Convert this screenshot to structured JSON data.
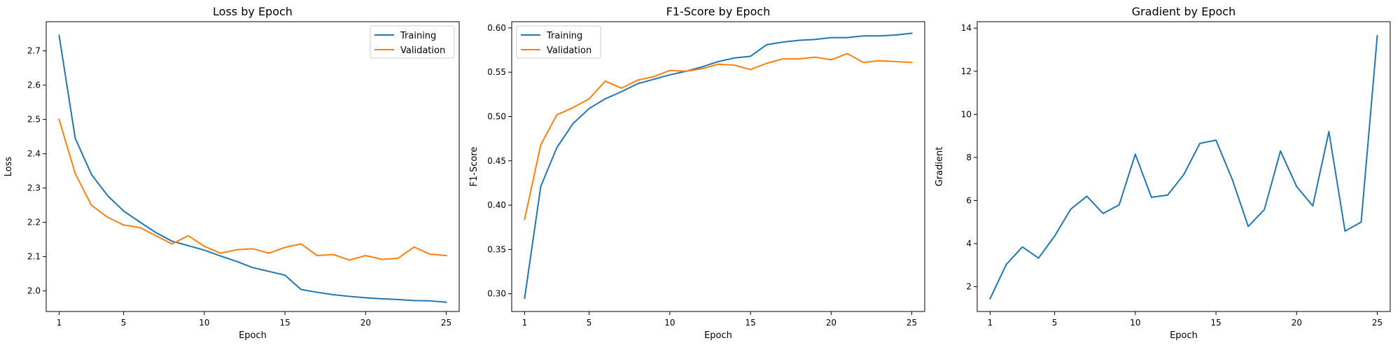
{
  "chart_data": [
    {
      "type": "line",
      "title": "Loss by Epoch",
      "xlabel": "Epoch",
      "ylabel": "Loss",
      "xlim": [
        0.2,
        25.8
      ],
      "ylim": [
        1.94,
        2.785
      ],
      "xticks": [
        1,
        5,
        10,
        15,
        20,
        25
      ],
      "yticks": [
        2.0,
        2.1,
        2.2,
        2.3,
        2.4,
        2.5,
        2.6,
        2.7
      ],
      "xtick_labels": [
        "1",
        "5",
        "10",
        "15",
        "20",
        "25"
      ],
      "ytick_labels": [
        "2.0",
        "2.1",
        "2.2",
        "2.3",
        "2.4",
        "2.5",
        "2.6",
        "2.7"
      ],
      "legend": "top-right",
      "grid": false,
      "x": [
        1,
        2,
        3,
        4,
        5,
        6,
        7,
        8,
        9,
        10,
        11,
        12,
        13,
        14,
        15,
        16,
        17,
        18,
        19,
        20,
        21,
        22,
        23,
        24,
        25
      ],
      "series": [
        {
          "name": "Training",
          "color": "#1f77b4",
          "values": [
            2.745,
            2.445,
            2.34,
            2.278,
            2.233,
            2.201,
            2.17,
            2.145,
            2.132,
            2.119,
            2.102,
            2.086,
            2.068,
            2.057,
            2.046,
            2.004,
            1.996,
            1.989,
            1.984,
            1.98,
            1.977,
            1.975,
            1.972,
            1.971,
            1.967
          ]
        },
        {
          "name": "Validation",
          "color": "#ff7f0e",
          "values": [
            2.5,
            2.342,
            2.25,
            2.215,
            2.192,
            2.185,
            2.161,
            2.137,
            2.161,
            2.13,
            2.11,
            2.12,
            2.123,
            2.11,
            2.127,
            2.137,
            2.103,
            2.106,
            2.09,
            2.103,
            2.092,
            2.095,
            2.128,
            2.107,
            2.103
          ]
        }
      ]
    },
    {
      "type": "line",
      "title": "F1-Score by Epoch",
      "xlabel": "Epoch",
      "ylabel": "F1-Score",
      "xlim": [
        0.2,
        25.8
      ],
      "ylim": [
        0.28,
        0.607
      ],
      "xticks": [
        1,
        5,
        10,
        15,
        20,
        25
      ],
      "yticks": [
        0.3,
        0.35,
        0.4,
        0.45,
        0.5,
        0.55,
        0.6
      ],
      "xtick_labels": [
        "1",
        "5",
        "10",
        "15",
        "20",
        "25"
      ],
      "ytick_labels": [
        "0.30",
        "0.35",
        "0.40",
        "0.45",
        "0.50",
        "0.55",
        "0.60"
      ],
      "legend": "top-left",
      "grid": false,
      "x": [
        1,
        2,
        3,
        4,
        5,
        6,
        7,
        8,
        9,
        10,
        11,
        12,
        13,
        14,
        15,
        16,
        17,
        18,
        19,
        20,
        21,
        22,
        23,
        24,
        25
      ],
      "series": [
        {
          "name": "Training",
          "color": "#1f77b4",
          "values": [
            0.295,
            0.421,
            0.465,
            0.492,
            0.509,
            0.52,
            0.528,
            0.537,
            0.542,
            0.547,
            0.551,
            0.556,
            0.562,
            0.566,
            0.568,
            0.581,
            0.584,
            0.586,
            0.587,
            0.589,
            0.589,
            0.591,
            0.591,
            0.592,
            0.594
          ]
        },
        {
          "name": "Validation",
          "color": "#ff7f0e",
          "values": [
            0.384,
            0.468,
            0.502,
            0.51,
            0.52,
            0.54,
            0.532,
            0.541,
            0.545,
            0.552,
            0.551,
            0.554,
            0.559,
            0.558,
            0.553,
            0.56,
            0.565,
            0.565,
            0.567,
            0.564,
            0.571,
            0.561,
            0.563,
            0.562,
            0.561
          ]
        }
      ]
    },
    {
      "type": "line",
      "title": "Gradient by Epoch",
      "xlabel": "Epoch",
      "ylabel": "Gradient",
      "xlim": [
        0.2,
        25.8
      ],
      "ylim": [
        0.85,
        14.3
      ],
      "xticks": [
        1,
        5,
        10,
        15,
        20,
        25
      ],
      "yticks": [
        2,
        4,
        6,
        8,
        10,
        12,
        14
      ],
      "xtick_labels": [
        "1",
        "5",
        "10",
        "15",
        "20",
        "25"
      ],
      "ytick_labels": [
        "2",
        "4",
        "6",
        "8",
        "10",
        "12",
        "14"
      ],
      "legend": "none",
      "grid": false,
      "x": [
        1,
        2,
        3,
        4,
        5,
        6,
        7,
        8,
        9,
        10,
        11,
        12,
        13,
        14,
        15,
        16,
        17,
        18,
        19,
        20,
        21,
        22,
        23,
        24,
        25
      ],
      "series": [
        {
          "color": "#1f77b4",
          "values": [
            1.45,
            3.03,
            3.85,
            3.33,
            4.35,
            5.6,
            6.2,
            5.4,
            5.8,
            8.15,
            6.15,
            6.25,
            7.2,
            8.65,
            8.8,
            7.0,
            4.8,
            5.58,
            8.3,
            6.65,
            5.75,
            9.2,
            4.58,
            5.0,
            13.65
          ]
        }
      ]
    }
  ]
}
